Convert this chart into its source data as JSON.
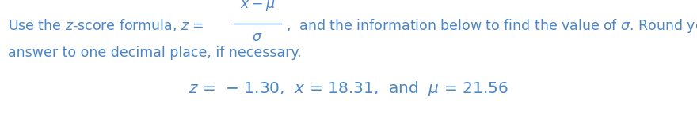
{
  "background_color": "#ffffff",
  "text_color": "#4a86c8",
  "figsize": [
    8.8,
    1.69
  ],
  "dpi": 100,
  "font_size_main": 12.5,
  "font_size_line3": 14.5,
  "line1_left": "Use the $z$-score formula, $z$ = ",
  "line1_numerator": "$x - \\mu$",
  "line1_denominator": "$\\sigma$",
  "line1_right": ",  and the information below to find the value of $\\sigma$. Round your",
  "line2": "answer to one decimal place, if necessary.",
  "line3_z": "$z$",
  "line3_rest": " =  − 1.30,  $x$ = 18.31,  and  $\\mu$ = 21.56"
}
